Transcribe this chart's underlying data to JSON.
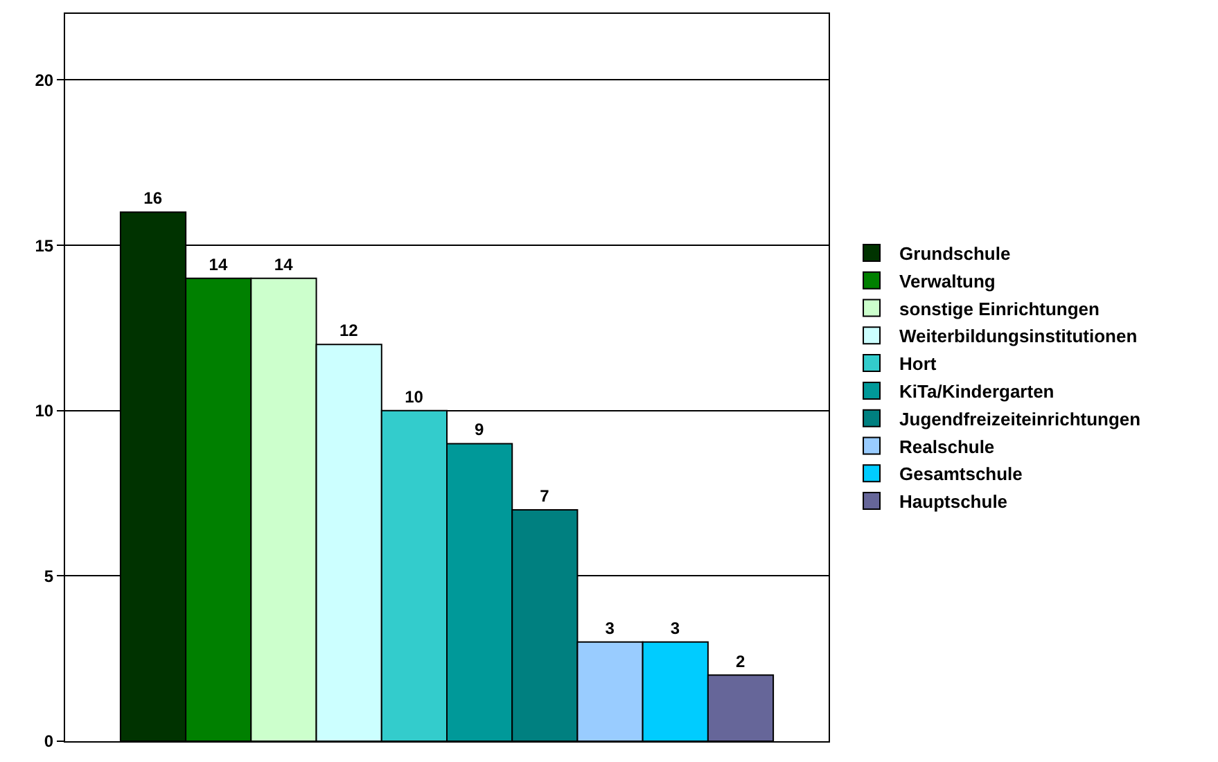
{
  "chart_data": {
    "type": "bar",
    "categories": [
      null
    ],
    "series": [
      {
        "name": "Grundschule",
        "color": "#003300",
        "values": [
          16
        ]
      },
      {
        "name": "Verwaltung",
        "color": "#008000",
        "values": [
          14
        ]
      },
      {
        "name": "sonstige Einrichtungen",
        "color": "#ccffcc",
        "values": [
          14
        ]
      },
      {
        "name": "Weiterbildungsinstitutionen",
        "color": "#ccffff",
        "values": [
          12
        ]
      },
      {
        "name": "Hort",
        "color": "#33cccc",
        "values": [
          10
        ]
      },
      {
        "name": "KiTa/Kindergarten",
        "color": "#009999",
        "values": [
          9
        ]
      },
      {
        "name": "Jugendfreizeiteinrichtungen",
        "color": "#008080",
        "values": [
          7
        ]
      },
      {
        "name": "Realschule",
        "color": "#99ccff",
        "values": [
          3
        ]
      },
      {
        "name": "Gesamtschule",
        "color": "#00ccff",
        "values": [
          3
        ]
      },
      {
        "name": "Hauptschule",
        "color": "#666699",
        "values": [
          2
        ]
      }
    ],
    "ylim": [
      0,
      22
    ],
    "yticks": [
      0,
      5,
      10,
      15,
      20
    ],
    "grid": "y",
    "legend": "right",
    "data_labels": true,
    "tick_labels": "y"
  }
}
